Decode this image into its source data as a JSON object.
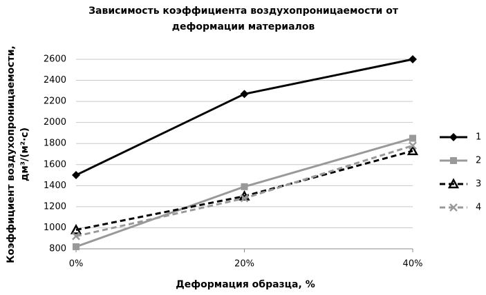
{
  "chart_data": {
    "type": "line",
    "title": [
      "Зависимость коэффициента воздухопроницаемости от",
      "деформации материалов"
    ],
    "xlabel": "Деформация образца, %",
    "ylabel": [
      "Коэффициент воздухопроницаемости,",
      "дм³/(м²·с)"
    ],
    "categories": [
      "0%",
      "20%",
      "40%"
    ],
    "series": [
      {
        "name": "1",
        "color": "#000000",
        "dashed": false,
        "marker": "diamond",
        "values": [
          1500,
          2270,
          2600
        ]
      },
      {
        "name": "2",
        "color": "#999999",
        "dashed": false,
        "marker": "square",
        "values": [
          820,
          1390,
          1850
        ]
      },
      {
        "name": "3",
        "color": "#000000",
        "dashed": true,
        "marker": "triangle",
        "values": [
          980,
          1300,
          1730
        ]
      },
      {
        "name": "4",
        "color": "#999999",
        "dashed": true,
        "marker": "x",
        "values": [
          920,
          1280,
          1780
        ]
      }
    ],
    "ylim": [
      800,
      2600
    ],
    "yticks": [
      800,
      1000,
      1200,
      1400,
      1600,
      1800,
      2000,
      2200,
      2400,
      2600
    ],
    "grid": true,
    "legend": "right"
  }
}
